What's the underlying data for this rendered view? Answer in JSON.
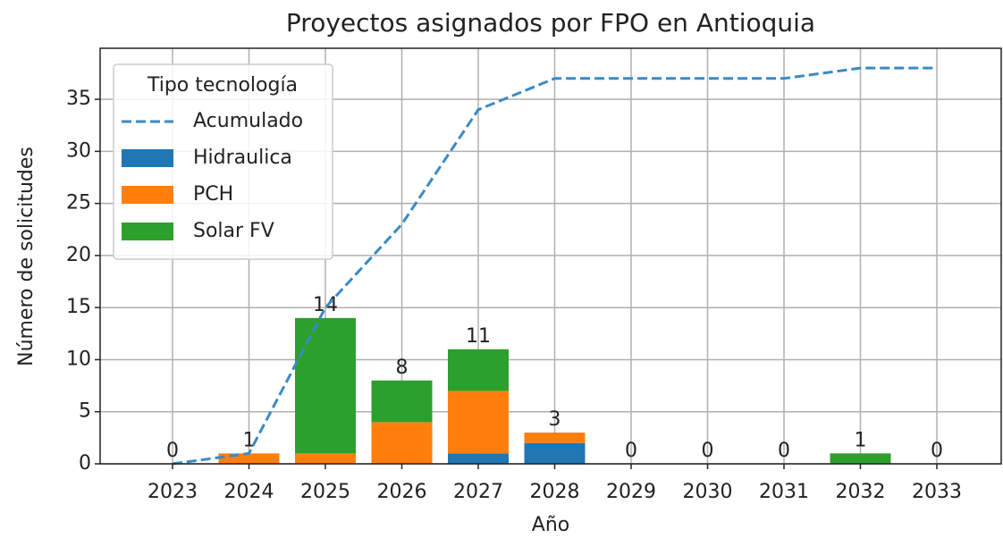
{
  "chart_data": {
    "type": "bar",
    "stacked": true,
    "title": "Proyectos asignados por FPO en Antioquia",
    "xlabel": "Año",
    "ylabel": "Número de solicitudes",
    "categories": [
      "2023",
      "2024",
      "2025",
      "2026",
      "2027",
      "2028",
      "2029",
      "2030",
      "2031",
      "2032",
      "2033"
    ],
    "series": [
      {
        "name": "Acumulado",
        "type": "line",
        "dashed": true,
        "color": "#3a8ac4",
        "values": [
          0,
          1,
          15,
          23,
          34,
          37,
          37,
          37,
          37,
          38,
          38
        ]
      },
      {
        "name": "Hidraulica",
        "type": "bar",
        "color": "#1f77b4",
        "values": [
          0,
          0,
          0,
          0,
          1,
          2,
          0,
          0,
          0,
          0,
          0
        ]
      },
      {
        "name": "PCH",
        "type": "bar",
        "color": "#ff7f0e",
        "values": [
          0,
          1,
          1,
          4,
          6,
          1,
          0,
          0,
          0,
          0,
          0
        ]
      },
      {
        "name": "Solar FV",
        "type": "bar",
        "color": "#2ca02c",
        "values": [
          0,
          0,
          13,
          4,
          4,
          0,
          0,
          0,
          0,
          1,
          0
        ]
      }
    ],
    "totals": [
      0,
      1,
      14,
      8,
      11,
      3,
      0,
      0,
      0,
      1,
      0
    ],
    "legend_title": "Tipo tecnología",
    "legend": "upper left",
    "ylim": [
      0,
      39.9
    ],
    "yticks": [
      0,
      5,
      10,
      15,
      20,
      25,
      30,
      35
    ],
    "grid": true
  }
}
